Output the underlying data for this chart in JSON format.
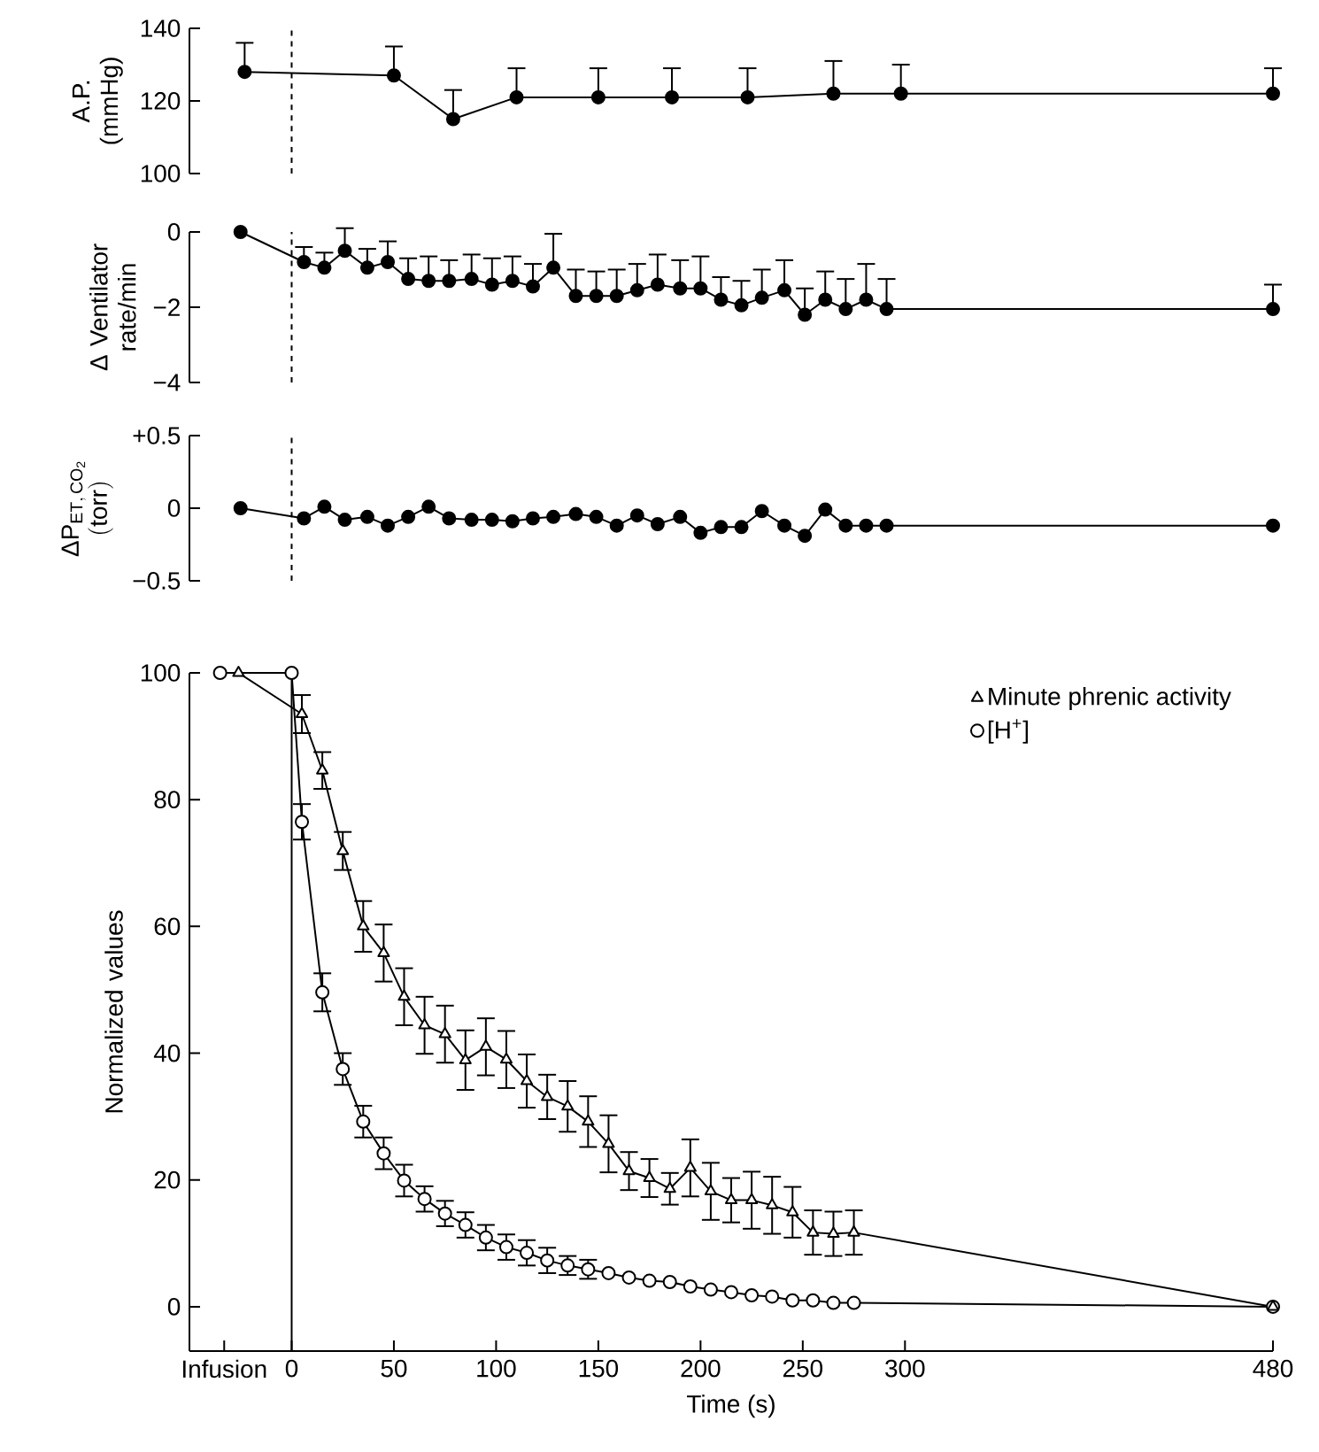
{
  "chart_data": [
    {
      "type": "line",
      "ylabel": "A.P. (mmHg)",
      "xlim": [
        -50,
        480
      ],
      "ylim": [
        100,
        140
      ],
      "yticks": [
        100,
        120,
        140
      ],
      "tick_labels": "y",
      "marker": "circle",
      "ref_lines": [
        {
          "axis": "x",
          "value": 0,
          "line_style": "dashed"
        }
      ],
      "series": [
        {
          "color": "#000000",
          "x": [
            -23,
            50,
            79,
            110,
            150,
            186,
            223,
            265,
            298,
            480
          ],
          "values": [
            128,
            127,
            115,
            121,
            121,
            121,
            121,
            122,
            122,
            122
          ],
          "errors": [
            [
              128,
              136
            ],
            [
              127,
              135
            ],
            [
              115,
              123
            ],
            [
              121,
              129
            ],
            [
              121,
              129
            ],
            [
              121,
              129
            ],
            [
              121,
              129
            ],
            [
              122,
              131
            ],
            [
              122,
              130
            ],
            [
              122,
              129
            ]
          ]
        }
      ]
    },
    {
      "type": "line",
      "ylabel": "Δ Ventilator rate/min",
      "xlim": [
        -50,
        480
      ],
      "ylim": [
        -4,
        0
      ],
      "yticks": [
        0,
        {
          "value": -2,
          "label": "−2"
        },
        {
          "value": -4,
          "label": "−4"
        }
      ],
      "tick_labels": "y",
      "marker": "circle",
      "ref_lines": [
        {
          "axis": "x",
          "value": 0,
          "line_style": "dashed"
        }
      ],
      "series": [
        {
          "color": "#000000",
          "x": [
            -25,
            6,
            16,
            26,
            37,
            47,
            57,
            67,
            77,
            88,
            98,
            108,
            118,
            128,
            139,
            149,
            159,
            169,
            179,
            190,
            200,
            210,
            220,
            230,
            241,
            251,
            261,
            271,
            281,
            291,
            480
          ],
          "values": [
            0,
            -0.8,
            -0.95,
            -0.5,
            -0.95,
            -0.8,
            -1.25,
            -1.3,
            -1.3,
            -1.25,
            -1.4,
            -1.3,
            -1.45,
            -0.95,
            -1.7,
            -1.7,
            -1.7,
            -1.55,
            -1.4,
            -1.5,
            -1.5,
            -1.8,
            -1.95,
            -1.75,
            -1.55,
            -2.2,
            -1.8,
            -2.05,
            -1.8,
            -2.05,
            -2.05
          ],
          "errors": [
            null,
            [
              -0.8,
              -0.4
            ],
            [
              -0.95,
              -0.55
            ],
            [
              -0.5,
              0.1
            ],
            [
              -0.95,
              -0.45
            ],
            [
              -0.8,
              -0.25
            ],
            [
              -1.25,
              -0.7
            ],
            [
              -1.3,
              -0.65
            ],
            [
              -1.3,
              -0.75
            ],
            [
              -1.25,
              -0.6
            ],
            [
              -1.4,
              -0.7
            ],
            [
              -1.3,
              -0.65
            ],
            [
              -1.45,
              -0.85
            ],
            [
              -0.95,
              -0.05
            ],
            [
              -1.7,
              -1
            ],
            [
              -1.7,
              -1.05
            ],
            [
              -1.7,
              -1
            ],
            [
              -1.55,
              -0.85
            ],
            [
              -1.4,
              -0.6
            ],
            [
              -1.5,
              -0.75
            ],
            [
              -1.5,
              -0.65
            ],
            [
              -1.8,
              -1.2
            ],
            [
              -1.95,
              -1.3
            ],
            [
              -1.75,
              -1
            ],
            [
              -1.55,
              -0.75
            ],
            [
              -2.2,
              -1.5
            ],
            [
              -1.8,
              -1.05
            ],
            [
              -2.05,
              -1.25
            ],
            [
              -1.8,
              -0.85
            ],
            [
              -2.05,
              -1.25
            ],
            [
              -2.05,
              -1.4
            ]
          ]
        }
      ]
    },
    {
      "type": "line",
      "ylabel": "\\begin{array}{c}\\mathrm{ΔP_{ET,\\,CO_{2}}}\\\\ \\mathrm{(torr)}\\end{array}",
      "xlim": [
        -50,
        480
      ],
      "ylim": [
        -0.5,
        0.5
      ],
      "yticks": [
        {
          "value": -0.5,
          "label": "−0.5"
        },
        0,
        {
          "value": 0.5,
          "label": "+0.5"
        }
      ],
      "tick_labels": "y",
      "marker": "circle",
      "ref_lines": [
        {
          "axis": "x",
          "value": 0,
          "line_style": "dashed"
        }
      ],
      "series": [
        {
          "color": "#000000",
          "x": [
            -25,
            6,
            16,
            26,
            37,
            47,
            57,
            67,
            77,
            88,
            98,
            108,
            118,
            128,
            139,
            149,
            159,
            169,
            179,
            190,
            200,
            210,
            220,
            230,
            241,
            251,
            261,
            271,
            281,
            291,
            480
          ],
          "values": [
            0,
            -0.07,
            0.01,
            -0.08,
            -0.06,
            -0.12,
            -0.06,
            0.01,
            -0.07,
            -0.08,
            -0.08,
            -0.09,
            -0.07,
            -0.06,
            -0.04,
            -0.06,
            -0.12,
            -0.05,
            -0.11,
            -0.06,
            -0.17,
            -0.13,
            -0.13,
            -0.02,
            -0.12,
            -0.19,
            -0.01,
            -0.12,
            -0.12,
            -0.12,
            -0.12
          ]
        }
      ]
    },
    {
      "type": "line",
      "xlabel": "Time (s)",
      "ylabel": "Normalized values",
      "xlim": [
        -50,
        480
      ],
      "ylim": [
        -7,
        100
      ],
      "xticks": [
        {
          "value": -33,
          "label": "Infusion"
        },
        0,
        50,
        100,
        150,
        200,
        250,
        300,
        480
      ],
      "yticks": [
        0,
        20,
        40,
        60,
        80,
        100
      ],
      "legend": "top right",
      "ref_lines": [
        {
          "axis": "x",
          "value": 0,
          "line_style": "solid"
        }
      ],
      "series": [
        {
          "name": "Minute phrenic activity",
          "color": "#000000",
          "marker": "triangle",
          "x": [
            -26,
            5,
            15,
            25,
            35,
            45,
            55,
            65,
            75,
            85,
            95,
            105,
            115,
            125,
            135,
            145,
            155,
            165,
            175,
            185,
            195,
            205,
            215,
            225,
            235,
            245,
            255,
            265,
            275,
            480
          ],
          "values": [
            100,
            93.5,
            84.6,
            71.9,
            60,
            55.8,
            48.9,
            44.4,
            43,
            38.9,
            41,
            39,
            35.6,
            33.1,
            31.6,
            29.2,
            25.7,
            21.4,
            20.3,
            18.6,
            21.9,
            18.2,
            16.8,
            16.8,
            16,
            14.9,
            11.7,
            11.5,
            11.7,
            0
          ],
          "errors": [
            null,
            3,
            2.9,
            3,
            4,
            4.5,
            4.5,
            4.5,
            4.5,
            4.7,
            4.5,
            4.5,
            4.2,
            3.5,
            4,
            4,
            4.5,
            3,
            3,
            2.5,
            4.5,
            4.5,
            3.5,
            4.5,
            4.5,
            4,
            3.5,
            3.5,
            3.5,
            null
          ]
        },
        {
          "name": "[H$^{+}$]",
          "color": "#000000",
          "marker": "circle",
          "x": [
            -35,
            0,
            5,
            15,
            25,
            35,
            45,
            55,
            65,
            75,
            85,
            95,
            105,
            115,
            125,
            135,
            145,
            155,
            165,
            175,
            185,
            195,
            205,
            215,
            225,
            235,
            245,
            255,
            265,
            275,
            480
          ],
          "values": [
            100,
            100,
            76.5,
            49.6,
            37.5,
            29.2,
            24.2,
            19.9,
            17,
            14.7,
            12.9,
            10.9,
            9.4,
            8.5,
            7.3,
            6.5,
            5.9,
            5.3,
            4.6,
            4.1,
            3.9,
            3.2,
            2.7,
            2.3,
            1.8,
            1.6,
            1,
            1,
            0.6,
            0.6,
            0
          ],
          "errors": [
            null,
            null,
            2.8,
            3,
            2.5,
            2.5,
            2.5,
            2.5,
            2,
            2,
            2,
            2,
            2,
            2,
            2,
            1.5,
            1.5,
            null,
            null,
            null,
            null,
            null,
            null,
            null,
            null,
            null,
            null,
            null,
            null,
            null,
            null
          ]
        }
      ]
    }
  ]
}
